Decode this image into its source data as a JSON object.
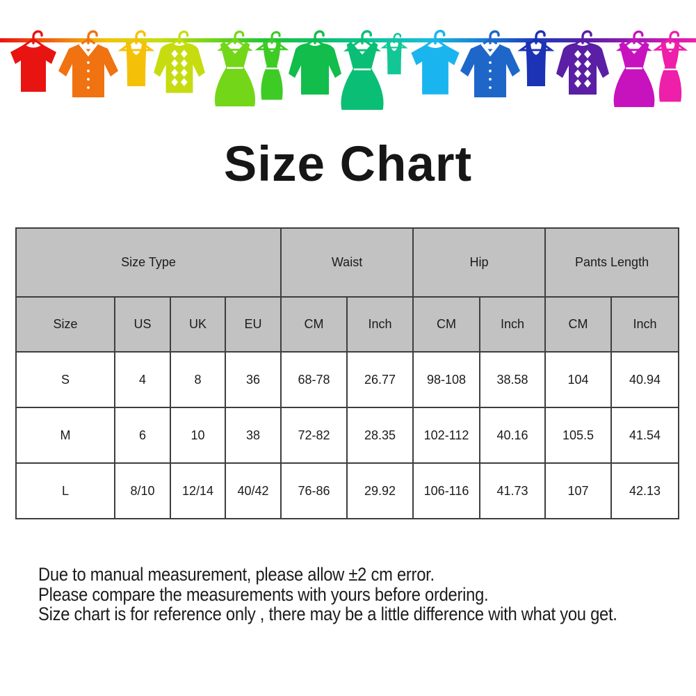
{
  "title": "Size Chart",
  "banner": {
    "rope_gradient": [
      "#e81412",
      "#f06a11",
      "#f2c40b",
      "#c6dc10",
      "#6fd41c",
      "#1fc43a",
      "#0dbf6e",
      "#0fc49d",
      "#16bcd9",
      "#1a7fd6",
      "#1c3bbb",
      "#5a1fa4",
      "#a81bb4",
      "#ee1fa9"
    ],
    "items": [
      {
        "type": "t-shirt",
        "color": "#e81412"
      },
      {
        "type": "button-shirt",
        "color": "#f07211"
      },
      {
        "type": "tank-top",
        "color": "#f5c108"
      },
      {
        "type": "argyle-sweater",
        "color": "#c6dc10"
      },
      {
        "type": "dress",
        "color": "#74d619"
      },
      {
        "type": "tank-dress",
        "color": "#3ecb25"
      },
      {
        "type": "sweater",
        "color": "#12bd4b"
      },
      {
        "type": "dress",
        "color": "#0abf75"
      },
      {
        "type": "tank-top",
        "color": "#12c795"
      },
      {
        "type": "t-shirt",
        "color": "#1ab5ee"
      },
      {
        "type": "button-shirt",
        "color": "#1f66c9"
      },
      {
        "type": "tank-top",
        "color": "#1c33b5"
      },
      {
        "type": "argyle-sweater",
        "color": "#5a1fa4"
      },
      {
        "type": "dress",
        "color": "#c713be"
      },
      {
        "type": "tank-dress",
        "color": "#ee1fa9"
      }
    ]
  },
  "table": {
    "header_bg": "#c2c2c2",
    "border_color": "#3e3e3e",
    "group_headers": [
      {
        "label": "Size Type",
        "span": 4
      },
      {
        "label": "Waist",
        "span": 2
      },
      {
        "label": "Hip",
        "span": 2
      },
      {
        "label": "Pants Length",
        "span": 2
      }
    ],
    "sub_headers": [
      "Size",
      "US",
      "UK",
      "EU",
      "CM",
      "Inch",
      "CM",
      "Inch",
      "CM",
      "Inch"
    ],
    "rows": [
      [
        "S",
        "4",
        "8",
        "36",
        "68-78",
        "26.77",
        "98-108",
        "38.58",
        "104",
        "40.94"
      ],
      [
        "M",
        "6",
        "10",
        "38",
        "72-82",
        "28.35",
        "102-112",
        "40.16",
        "105.5",
        "41.54"
      ],
      [
        "L",
        "8/10",
        "12/14",
        "40/42",
        "76-86",
        "29.92",
        "106-116",
        "41.73",
        "107",
        "42.13"
      ]
    ]
  },
  "notes": [
    "Due to manual measurement, please allow ±2 cm error.",
    "Please compare the measurements with yours before ordering.",
    "Size chart is for reference only , there may be a little difference with what you get."
  ]
}
